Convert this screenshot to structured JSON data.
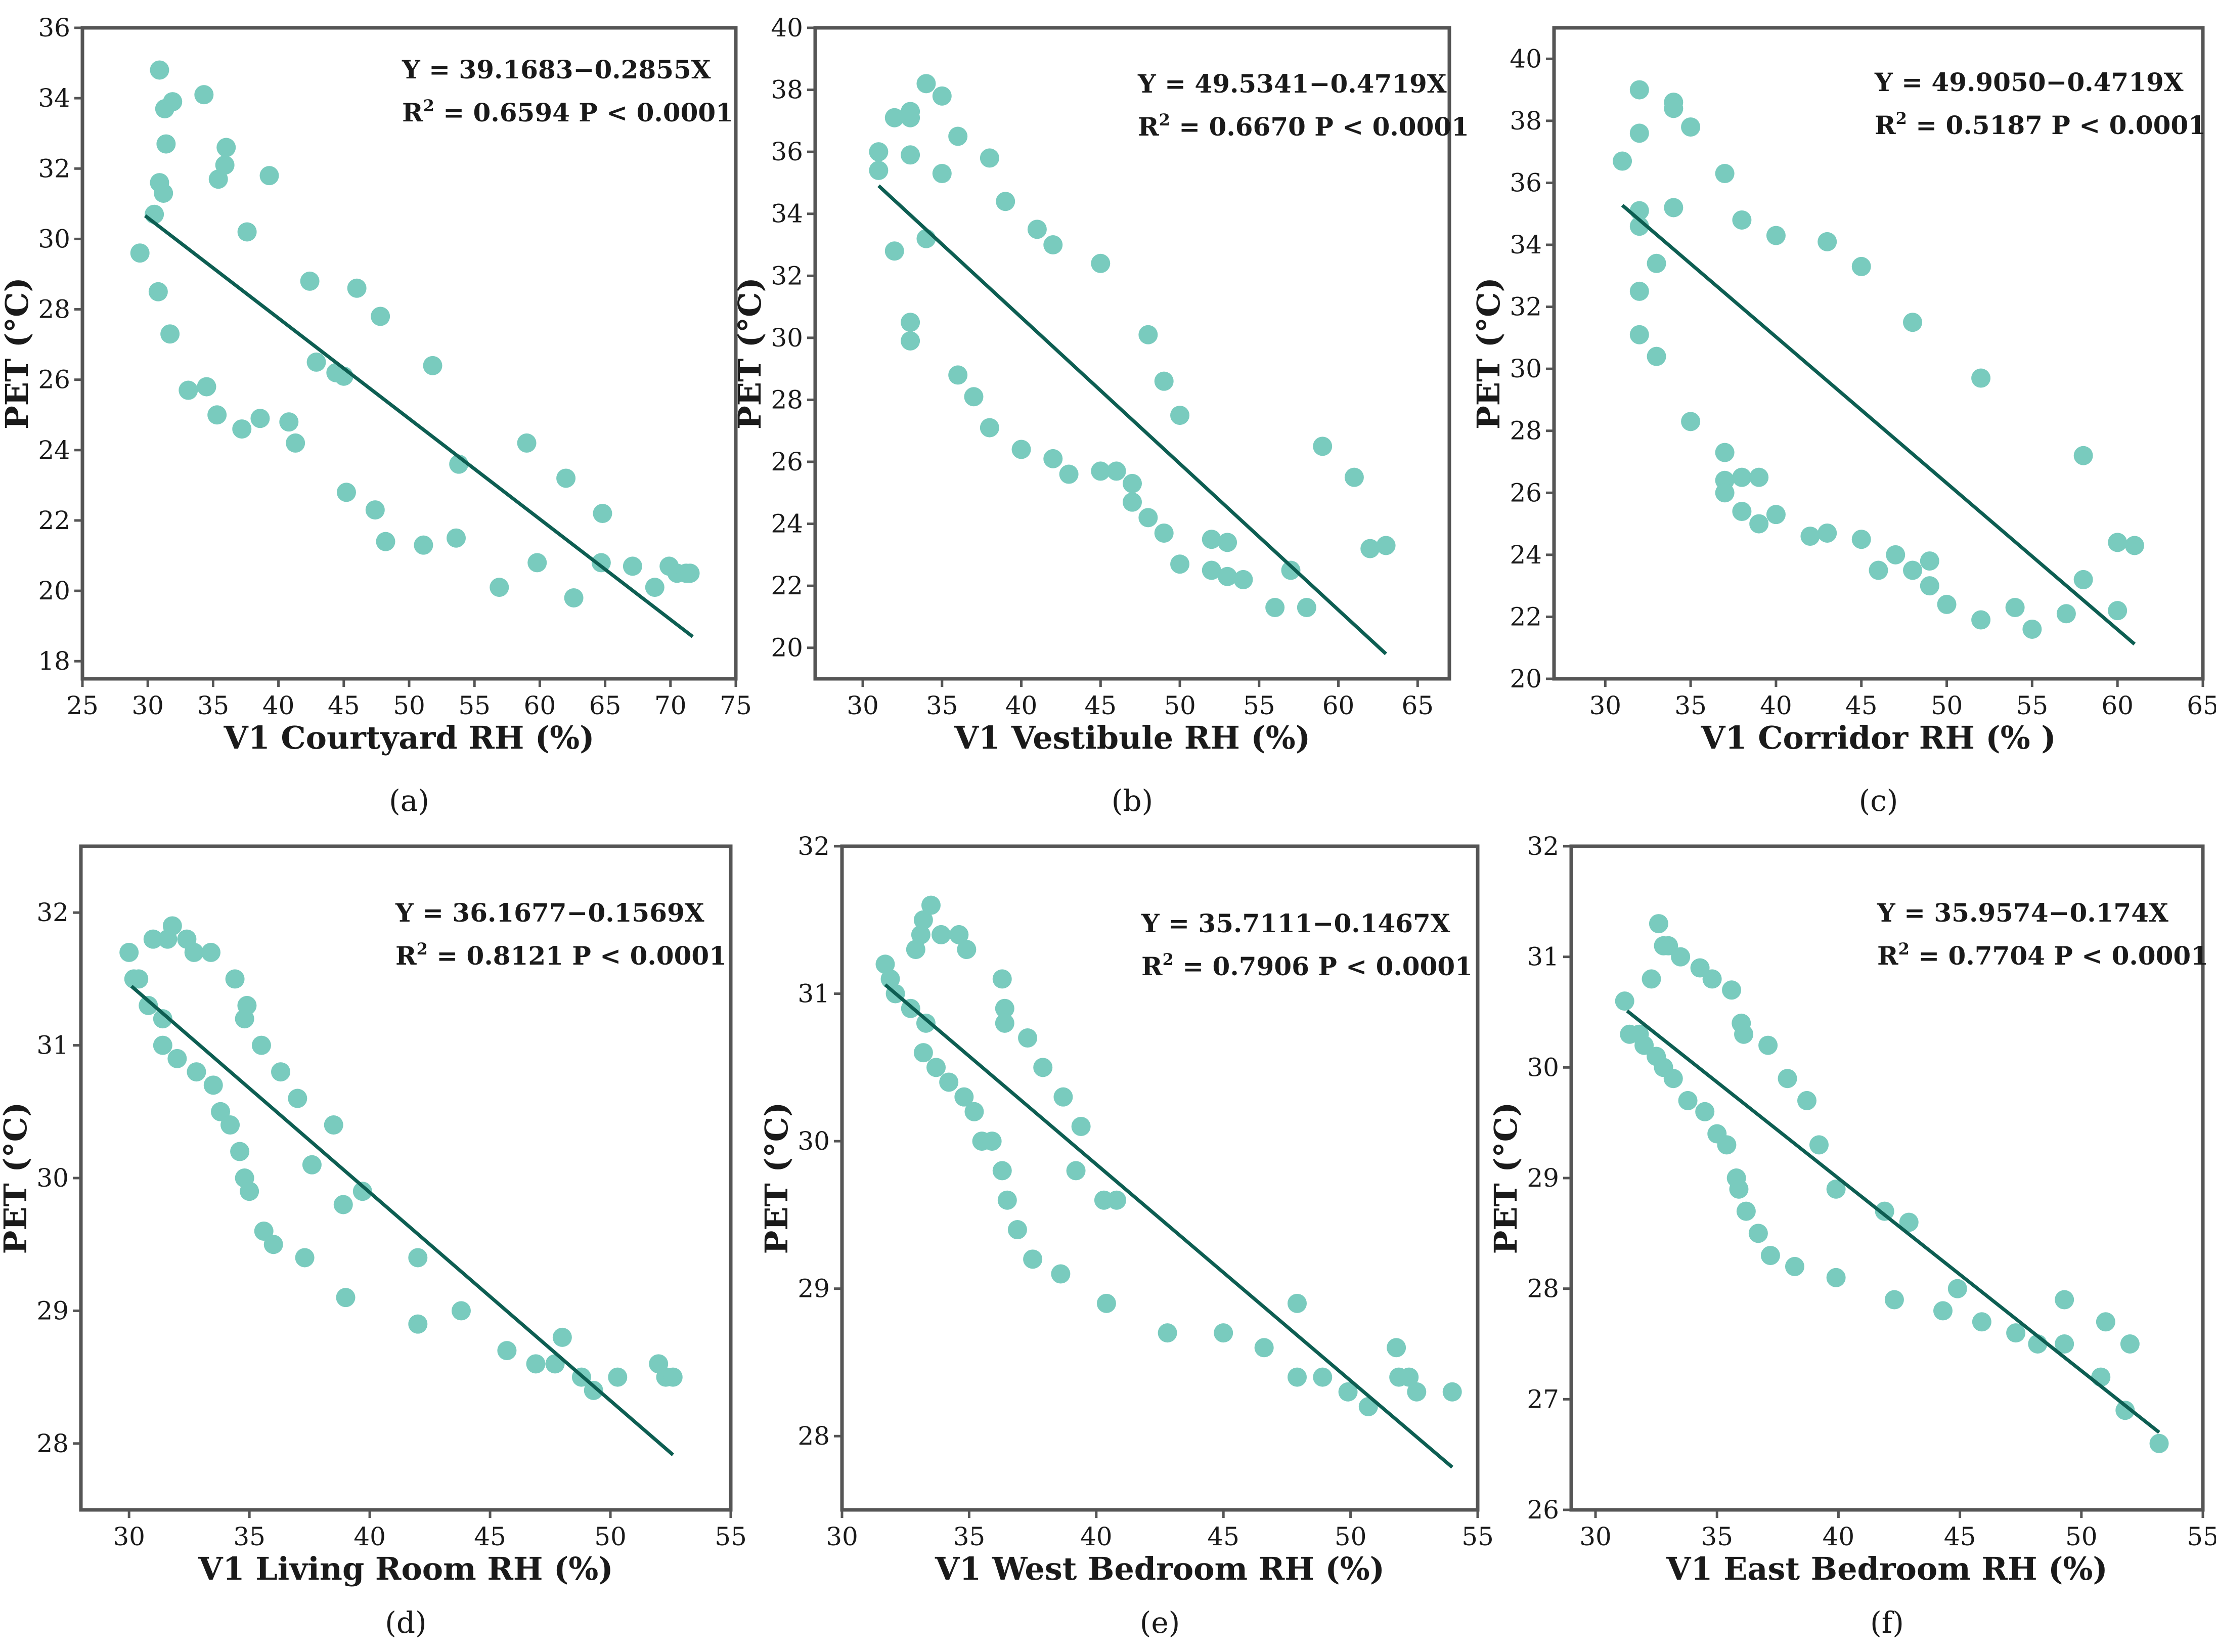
{
  "figure": {
    "colors": {
      "point": "#79cbbe",
      "fit_line": "#0d5e52",
      "axis": "#555555",
      "text": "#1a1a1a"
    }
  },
  "chart_data": [
    {
      "type": "scatter",
      "caption": "(a)",
      "xlabel": "V1 Courtyard RH (%)",
      "ylabel": "PET (°C)",
      "xlim": [
        25,
        75
      ],
      "ylim": [
        17.5,
        36
      ],
      "xticks": [
        25,
        30,
        35,
        40,
        45,
        50,
        55,
        60,
        65,
        70,
        75
      ],
      "yticks": [
        18,
        20,
        22,
        24,
        26,
        28,
        30,
        32,
        34,
        36
      ],
      "equation": "Y = 39.1683−0.2855X",
      "r2_label": "R",
      "r2_value": " = 0.6594   P < 0.0001",
      "fit": {
        "intercept": 39.1683,
        "slope": -0.2855,
        "x_range": [
          29.8,
          71.7
        ]
      },
      "points": [
        [
          29.4,
          29.6
        ],
        [
          30.5,
          30.7
        ],
        [
          30.8,
          28.5
        ],
        [
          30.9,
          34.8
        ],
        [
          30.9,
          31.6
        ],
        [
          31.2,
          31.3
        ],
        [
          31.3,
          33.7
        ],
        [
          31.4,
          32.7
        ],
        [
          31.7,
          27.3
        ],
        [
          31.9,
          33.9
        ],
        [
          33.1,
          25.7
        ],
        [
          34.3,
          34.1
        ],
        [
          34.5,
          25.8
        ],
        [
          35.3,
          25.0
        ],
        [
          35.4,
          31.7
        ],
        [
          35.9,
          32.1
        ],
        [
          36.0,
          32.6
        ],
        [
          37.2,
          24.6
        ],
        [
          37.6,
          30.2
        ],
        [
          38.6,
          24.9
        ],
        [
          39.3,
          31.8
        ],
        [
          40.8,
          24.8
        ],
        [
          41.3,
          24.2
        ],
        [
          42.4,
          28.8
        ],
        [
          42.9,
          26.5
        ],
        [
          44.4,
          26.2
        ],
        [
          45.0,
          26.1
        ],
        [
          45.2,
          22.8
        ],
        [
          46.0,
          28.6
        ],
        [
          47.4,
          22.3
        ],
        [
          47.8,
          27.8
        ],
        [
          48.2,
          21.4
        ],
        [
          51.1,
          21.3
        ],
        [
          51.8,
          26.4
        ],
        [
          53.6,
          21.5
        ],
        [
          53.8,
          23.6
        ],
        [
          56.9,
          20.1
        ],
        [
          59.0,
          24.2
        ],
        [
          59.8,
          20.8
        ],
        [
          62.0,
          23.2
        ],
        [
          62.6,
          19.8
        ],
        [
          64.7,
          20.8
        ],
        [
          64.8,
          22.2
        ],
        [
          67.1,
          20.7
        ],
        [
          68.8,
          20.1
        ],
        [
          69.9,
          20.7
        ],
        [
          70.5,
          20.5
        ],
        [
          71.2,
          20.5
        ],
        [
          71.5,
          20.5
        ]
      ]
    },
    {
      "type": "scatter",
      "caption": "(b)",
      "xlabel": "V1 Vestibule RH (%)",
      "ylabel": "PET (°C)",
      "xlim": [
        27,
        67
      ],
      "ylim": [
        19,
        40
      ],
      "xticks": [
        30,
        35,
        40,
        45,
        50,
        55,
        60,
        65
      ],
      "yticks": [
        20,
        22,
        24,
        26,
        28,
        30,
        32,
        34,
        36,
        38,
        40
      ],
      "equation": "Y = 49.5341−0.4719X",
      "r2_label": "R",
      "r2_value": " = 0.6670   P < 0.0001",
      "fit": {
        "intercept": 49.5341,
        "slope": -0.4719,
        "x_range": [
          31.0,
          63.0
        ]
      },
      "points": [
        [
          31.0,
          36.0
        ],
        [
          31.0,
          35.4
        ],
        [
          32.0,
          37.1
        ],
        [
          32.0,
          32.8
        ],
        [
          33.0,
          37.1
        ],
        [
          33.0,
          37.3
        ],
        [
          33.0,
          35.9
        ],
        [
          33.0,
          30.5
        ],
        [
          33.0,
          29.9
        ],
        [
          34.0,
          38.2
        ],
        [
          34.0,
          33.2
        ],
        [
          35.0,
          37.8
        ],
        [
          35.0,
          35.3
        ],
        [
          36.0,
          36.5
        ],
        [
          36.0,
          28.8
        ],
        [
          37.0,
          28.1
        ],
        [
          38.0,
          35.8
        ],
        [
          38.0,
          27.1
        ],
        [
          39.0,
          34.4
        ],
        [
          40.0,
          26.4
        ],
        [
          41.0,
          33.5
        ],
        [
          42.0,
          33.0
        ],
        [
          42.0,
          26.1
        ],
        [
          43.0,
          25.6
        ],
        [
          45.0,
          32.4
        ],
        [
          45.0,
          25.7
        ],
        [
          46.0,
          25.7
        ],
        [
          47.0,
          25.3
        ],
        [
          47.0,
          24.7
        ],
        [
          48.0,
          30.1
        ],
        [
          48.0,
          24.2
        ],
        [
          49.0,
          28.6
        ],
        [
          49.0,
          23.7
        ],
        [
          50.0,
          27.5
        ],
        [
          50.0,
          22.7
        ],
        [
          52.0,
          23.5
        ],
        [
          52.0,
          22.5
        ],
        [
          53.0,
          23.4
        ],
        [
          53.0,
          22.3
        ],
        [
          54.0,
          22.2
        ],
        [
          56.0,
          21.3
        ],
        [
          57.0,
          22.5
        ],
        [
          58.0,
          21.3
        ],
        [
          59.0,
          26.5
        ],
        [
          61.0,
          25.5
        ],
        [
          62.0,
          23.2
        ],
        [
          63.0,
          23.3
        ]
      ]
    },
    {
      "type": "scatter",
      "caption": "(c)",
      "xlabel": "V1 Corridor RH (% )",
      "ylabel": "PET (°C)",
      "xlim": [
        27,
        65
      ],
      "ylim": [
        20,
        41
      ],
      "xticks": [
        30,
        35,
        40,
        45,
        50,
        55,
        60,
        65
      ],
      "yticks": [
        20,
        22,
        24,
        26,
        28,
        30,
        32,
        34,
        36,
        38,
        40
      ],
      "equation": "Y = 49.9050−0.4719X",
      "r2_label": "R",
      "r2_value": " = 0.5187   P < 0.0001",
      "fit": {
        "intercept": 49.905,
        "slope": -0.4719,
        "x_range": [
          31.0,
          61.0
        ]
      },
      "points": [
        [
          31.0,
          36.7
        ],
        [
          32.0,
          39.0
        ],
        [
          32.0,
          37.6
        ],
        [
          32.0,
          35.1
        ],
        [
          32.0,
          34.6
        ],
        [
          32.0,
          32.5
        ],
        [
          32.0,
          31.1
        ],
        [
          33.0,
          33.4
        ],
        [
          33.0,
          30.4
        ],
        [
          34.0,
          38.6
        ],
        [
          34.0,
          38.4
        ],
        [
          34.0,
          35.2
        ],
        [
          35.0,
          37.8
        ],
        [
          35.0,
          28.3
        ],
        [
          37.0,
          36.3
        ],
        [
          37.0,
          27.3
        ],
        [
          37.0,
          26.4
        ],
        [
          37.0,
          26.0
        ],
        [
          38.0,
          34.8
        ],
        [
          38.0,
          26.5
        ],
        [
          38.0,
          25.4
        ],
        [
          39.0,
          26.5
        ],
        [
          39.0,
          25.0
        ],
        [
          40.0,
          34.3
        ],
        [
          40.0,
          25.3
        ],
        [
          42.0,
          24.6
        ],
        [
          43.0,
          34.1
        ],
        [
          43.0,
          24.7
        ],
        [
          45.0,
          33.3
        ],
        [
          45.0,
          24.5
        ],
        [
          46.0,
          23.5
        ],
        [
          47.0,
          24.0
        ],
        [
          48.0,
          31.5
        ],
        [
          48.0,
          23.5
        ],
        [
          49.0,
          23.8
        ],
        [
          49.0,
          23.0
        ],
        [
          50.0,
          22.4
        ],
        [
          52.0,
          29.7
        ],
        [
          52.0,
          21.9
        ],
        [
          54.0,
          22.3
        ],
        [
          55.0,
          21.6
        ],
        [
          57.0,
          22.1
        ],
        [
          58.0,
          27.2
        ],
        [
          58.0,
          23.2
        ],
        [
          60.0,
          24.4
        ],
        [
          60.0,
          22.2
        ],
        [
          61.0,
          24.3
        ]
      ]
    },
    {
      "type": "scatter",
      "caption": "(d)",
      "xlabel": "V1 Living Room RH (%)",
      "ylabel": "PET (°C)",
      "xlim": [
        28,
        55
      ],
      "ylim": [
        27.5,
        32.5
      ],
      "xticks": [
        30,
        35,
        40,
        45,
        50,
        55
      ],
      "yticks": [
        28,
        29,
        30,
        31,
        32
      ],
      "equation": "Y = 36.1677−0.1569X",
      "r2_label": "R",
      "r2_value": " = 0.8121   P < 0.0001",
      "fit": {
        "intercept": 36.1677,
        "slope": -0.1569,
        "x_range": [
          30.1,
          52.6
        ]
      },
      "points": [
        [
          30.0,
          31.7
        ],
        [
          30.2,
          31.5
        ],
        [
          30.4,
          31.5
        ],
        [
          30.8,
          31.3
        ],
        [
          31.0,
          31.8
        ],
        [
          31.4,
          31.2
        ],
        [
          31.4,
          31.0
        ],
        [
          31.6,
          31.8
        ],
        [
          31.8,
          31.9
        ],
        [
          32.0,
          30.9
        ],
        [
          32.4,
          31.8
        ],
        [
          32.7,
          31.7
        ],
        [
          32.8,
          30.8
        ],
        [
          33.4,
          31.7
        ],
        [
          33.5,
          30.7
        ],
        [
          33.8,
          30.5
        ],
        [
          34.2,
          30.4
        ],
        [
          34.4,
          31.5
        ],
        [
          34.6,
          30.2
        ],
        [
          34.8,
          31.2
        ],
        [
          34.8,
          30.0
        ],
        [
          34.9,
          31.3
        ],
        [
          35.0,
          29.9
        ],
        [
          35.5,
          31.0
        ],
        [
          35.6,
          29.6
        ],
        [
          36.0,
          29.5
        ],
        [
          36.3,
          30.8
        ],
        [
          37.0,
          30.6
        ],
        [
          37.3,
          29.4
        ],
        [
          37.6,
          30.1
        ],
        [
          38.5,
          30.4
        ],
        [
          38.9,
          29.8
        ],
        [
          39.0,
          29.1
        ],
        [
          39.7,
          29.9
        ],
        [
          42.0,
          29.4
        ],
        [
          42.0,
          28.9
        ],
        [
          43.8,
          29.0
        ],
        [
          45.7,
          28.7
        ],
        [
          46.9,
          28.6
        ],
        [
          47.7,
          28.6
        ],
        [
          48.0,
          28.8
        ],
        [
          48.8,
          28.5
        ],
        [
          49.3,
          28.4
        ],
        [
          50.3,
          28.5
        ],
        [
          52.0,
          28.6
        ],
        [
          52.3,
          28.5
        ],
        [
          52.6,
          28.5
        ]
      ]
    },
    {
      "type": "scatter",
      "caption": "(e)",
      "xlabel": "V1 West Bedroom RH (%)",
      "ylabel": "PET (°C)",
      "xlim": [
        30,
        55
      ],
      "ylim": [
        27.5,
        32
      ],
      "xticks": [
        30,
        35,
        40,
        45,
        50,
        55
      ],
      "yticks": [
        28,
        29,
        30,
        31,
        32
      ],
      "equation": "Y = 35.7111−0.1467X",
      "r2_label": "R",
      "r2_value": " = 0.7906   P < 0.0001",
      "fit": {
        "intercept": 35.7111,
        "slope": -0.1467,
        "x_range": [
          31.7,
          54.0
        ]
      },
      "points": [
        [
          31.7,
          31.2
        ],
        [
          31.9,
          31.1
        ],
        [
          32.1,
          31.0
        ],
        [
          32.7,
          30.9
        ],
        [
          32.9,
          31.3
        ],
        [
          33.1,
          31.4
        ],
        [
          33.2,
          30.6
        ],
        [
          33.2,
          31.5
        ],
        [
          33.3,
          30.8
        ],
        [
          33.5,
          31.6
        ],
        [
          33.7,
          30.5
        ],
        [
          33.9,
          31.4
        ],
        [
          34.2,
          30.4
        ],
        [
          34.6,
          31.4
        ],
        [
          34.8,
          30.3
        ],
        [
          34.9,
          31.3
        ],
        [
          35.2,
          30.2
        ],
        [
          35.5,
          30.0
        ],
        [
          35.9,
          30.0
        ],
        [
          36.3,
          29.8
        ],
        [
          36.3,
          31.1
        ],
        [
          36.4,
          30.9
        ],
        [
          36.4,
          30.8
        ],
        [
          36.5,
          29.6
        ],
        [
          36.9,
          29.4
        ],
        [
          37.3,
          30.7
        ],
        [
          37.5,
          29.2
        ],
        [
          37.9,
          30.5
        ],
        [
          38.6,
          29.1
        ],
        [
          38.7,
          30.3
        ],
        [
          39.2,
          29.8
        ],
        [
          39.4,
          30.1
        ],
        [
          40.3,
          29.6
        ],
        [
          40.4,
          28.9
        ],
        [
          40.8,
          29.6
        ],
        [
          42.8,
          28.7
        ],
        [
          45.0,
          28.7
        ],
        [
          46.6,
          28.6
        ],
        [
          47.9,
          28.4
        ],
        [
          47.9,
          28.9
        ],
        [
          48.9,
          28.4
        ],
        [
          49.9,
          28.3
        ],
        [
          50.7,
          28.2
        ],
        [
          51.8,
          28.6
        ],
        [
          51.9,
          28.4
        ],
        [
          52.3,
          28.4
        ],
        [
          52.6,
          28.3
        ],
        [
          54.0,
          28.3
        ]
      ]
    },
    {
      "type": "scatter",
      "caption": "(f)",
      "xlabel": "V1 East Bedroom RH (%)",
      "ylabel": "PET (°C)",
      "xlim": [
        29,
        55
      ],
      "ylim": [
        26,
        32
      ],
      "xticks": [
        30,
        35,
        40,
        45,
        50,
        55
      ],
      "yticks": [
        26,
        27,
        28,
        29,
        30,
        31,
        32
      ],
      "equation": "Y = 35.9574−0.174X",
      "r2_label": "R",
      "r2_value": " = 0.7704   P < 0.0001",
      "fit": {
        "intercept": 35.9574,
        "slope": -0.174,
        "x_range": [
          31.3,
          53.2
        ]
      },
      "points": [
        [
          31.2,
          30.6
        ],
        [
          31.4,
          30.3
        ],
        [
          31.8,
          30.3
        ],
        [
          32.0,
          30.2
        ],
        [
          32.3,
          30.8
        ],
        [
          32.5,
          30.1
        ],
        [
          32.6,
          31.3
        ],
        [
          32.8,
          30.0
        ],
        [
          32.8,
          31.1
        ],
        [
          33.0,
          31.1
        ],
        [
          33.2,
          29.9
        ],
        [
          33.5,
          31.0
        ],
        [
          33.8,
          29.7
        ],
        [
          34.3,
          30.9
        ],
        [
          34.5,
          29.6
        ],
        [
          34.8,
          30.8
        ],
        [
          35.0,
          29.4
        ],
        [
          35.4,
          29.3
        ],
        [
          35.6,
          30.7
        ],
        [
          35.8,
          29.0
        ],
        [
          35.9,
          28.9
        ],
        [
          36.0,
          30.4
        ],
        [
          36.1,
          30.3
        ],
        [
          36.2,
          28.7
        ],
        [
          36.7,
          28.5
        ],
        [
          37.1,
          30.2
        ],
        [
          37.2,
          28.3
        ],
        [
          37.9,
          29.9
        ],
        [
          38.2,
          28.2
        ],
        [
          38.7,
          29.7
        ],
        [
          39.2,
          29.3
        ],
        [
          39.9,
          28.9
        ],
        [
          39.9,
          28.1
        ],
        [
          41.9,
          28.7
        ],
        [
          42.3,
          27.9
        ],
        [
          42.9,
          28.6
        ],
        [
          44.3,
          27.8
        ],
        [
          44.9,
          28.0
        ],
        [
          45.9,
          27.7
        ],
        [
          47.3,
          27.6
        ],
        [
          48.2,
          27.5
        ],
        [
          49.3,
          27.9
        ],
        [
          49.3,
          27.5
        ],
        [
          50.8,
          27.2
        ],
        [
          51.0,
          27.7
        ],
        [
          51.8,
          26.9
        ],
        [
          52.0,
          27.5
        ],
        [
          53.2,
          26.6
        ]
      ]
    }
  ]
}
